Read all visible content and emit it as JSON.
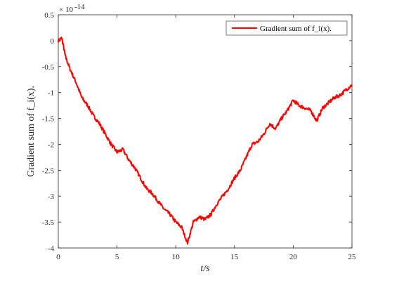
{
  "chart_data": {
    "type": "line",
    "xlabel": "t/s",
    "ylabel": "Gradient sum of f_i(x).",
    "xlim": [
      0,
      25
    ],
    "ylim": [
      -4,
      0.5
    ],
    "x_ticks": [
      "0",
      "5",
      "10",
      "15",
      "20",
      "25"
    ],
    "y_ticks": [
      "0.5",
      "0",
      "-0.5",
      "-1",
      "-1.5",
      "-2",
      "-2.5",
      "-3",
      "-3.5",
      "-4"
    ],
    "y_exponent_base": "× 10",
    "y_exponent_power": "-14",
    "grid": false,
    "legend_position": "top-right",
    "series": [
      {
        "name": "Gradient sum of f_i(x).",
        "color": "#ff0000",
        "x": [
          0,
          0.3,
          0.6,
          1.0,
          1.5,
          2.0,
          2.5,
          3.0,
          3.5,
          4.0,
          4.5,
          5.0,
          5.5,
          6.0,
          6.5,
          7.0,
          7.5,
          8.0,
          8.5,
          9.0,
          9.5,
          10.0,
          10.5,
          11.0,
          11.5,
          12.0,
          12.5,
          13.0,
          13.5,
          14.0,
          14.5,
          15.0,
          15.5,
          16.0,
          16.5,
          17.0,
          17.5,
          18.0,
          18.5,
          19.0,
          19.5,
          20.0,
          20.5,
          21.0,
          21.5,
          22.0,
          22.5,
          23.0,
          23.5,
          24.0,
          24.5,
          25.0
        ],
        "values": [
          0.0,
          0.05,
          -0.3,
          -0.55,
          -0.8,
          -1.1,
          -1.25,
          -1.45,
          -1.6,
          -1.8,
          -2.0,
          -2.15,
          -2.1,
          -2.3,
          -2.45,
          -2.65,
          -2.85,
          -2.95,
          -3.1,
          -3.25,
          -3.35,
          -3.5,
          -3.6,
          -3.9,
          -3.5,
          -3.4,
          -3.45,
          -3.35,
          -3.15,
          -3.0,
          -2.85,
          -2.65,
          -2.5,
          -2.25,
          -2.0,
          -1.95,
          -1.8,
          -1.6,
          -1.7,
          -1.5,
          -1.35,
          -1.15,
          -1.25,
          -1.3,
          -1.35,
          -1.55,
          -1.3,
          -1.2,
          -1.1,
          -1.05,
          -0.95,
          -0.85
        ]
      }
    ]
  }
}
